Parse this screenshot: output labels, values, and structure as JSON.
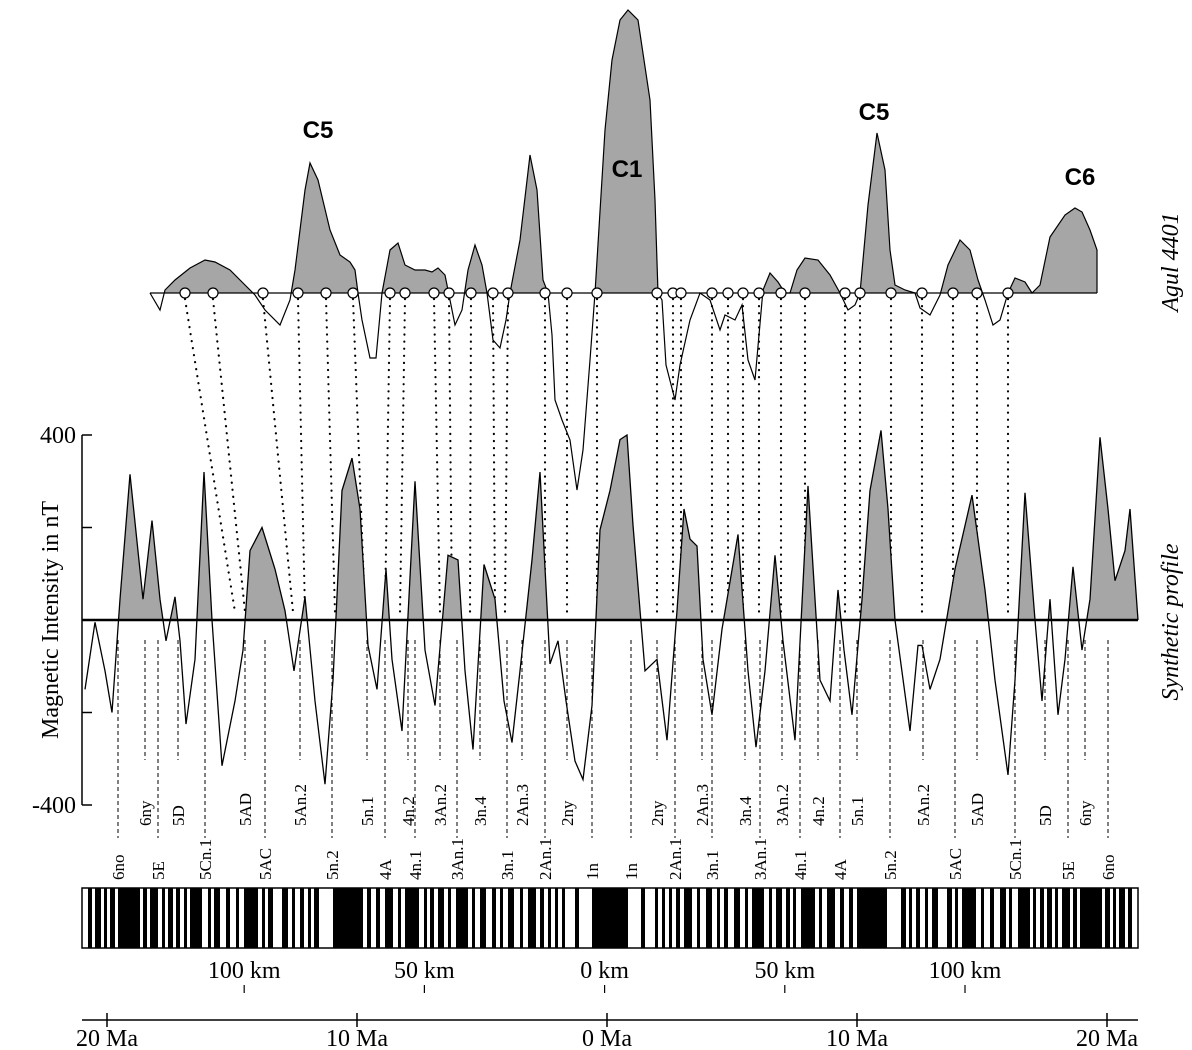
{
  "chart_data": {
    "type": "line",
    "observed_label": "Agul 4401",
    "anomaly_labels": [
      "C5",
      "C1",
      "C5",
      "C6"
    ],
    "ylabel": "Magnetic Intensity in nT",
    "color": "#a6a6a6",
    "x": [
      -20.88,
      -20.48,
      -20.08,
      -19.8,
      -19.48,
      -19.08,
      -18.56,
      -18.2,
      -17.88,
      -17.64,
      -17.28,
      -17.08,
      -16.84,
      -16.48,
      -16.12,
      -15.8,
      -15.4,
      -14.88,
      -14.56,
      -14.28,
      -13.8,
      -13.28,
      -12.88,
      -12.52,
      -12.08,
      -11.68,
      -11.28,
      -10.96,
      -10.6,
      -10.2,
      -9.88,
      -9.56,
      -9.2,
      -8.84,
      -8.6,
      -8.2,
      -7.68,
      -7.28,
      -6.88,
      -6.36,
      -5.96,
      -5.68,
      -5.36,
      -4.92,
      -4.48,
      -4.12,
      -3.8,
      -3.48,
      -3.0,
      -2.68,
      -2.28,
      -1.96,
      -1.64,
      -1.28,
      -0.96,
      -0.6,
      -0.28,
      0.12,
      0.52,
      0.8,
      1.04,
      1.52,
      2.0,
      2.4,
      2.8,
      3.08,
      3.32,
      3.6,
      3.84,
      4.2,
      4.6,
      5.24,
      5.64,
      5.96,
      6.32,
      6.72,
      7.04,
      7.52,
      8.04,
      8.52,
      8.92,
      9.24,
      9.48,
      9.8,
      10.2,
      10.52,
      10.96,
      11.24,
      11.52,
      12.12,
      12.44,
      12.6,
      12.92,
      13.32,
      13.92,
      14.6,
      15.12,
      15.52,
      16.04,
      16.32,
      16.72,
      17.12,
      17.4,
      17.72,
      18.04,
      18.32,
      18.64,
      19.0,
      19.32,
      19.72,
      20.04,
      20.32,
      20.72,
      20.92,
      21.24
    ],
    "series": [
      {
        "name": "Synthetic profile",
        "color": "#000000",
        "values": [
          -150,
          -5,
          -110,
          -200,
          45,
          315,
          45,
          215,
          45,
          -45,
          50,
          -45,
          -225,
          -85,
          320,
          0,
          -315,
          -175,
          -65,
          150,
          200,
          110,
          20,
          -110,
          50,
          -175,
          -355,
          -130,
          280,
          350,
          240,
          -55,
          -150,
          110,
          -85,
          -240,
          300,
          -65,
          -185,
          140,
          130,
          -110,
          -280,
          120,
          45,
          -175,
          -265,
          -110,
          130,
          320,
          -95,
          -45,
          -175,
          -305,
          -345,
          -185,
          195,
          280,
          390,
          400,
          205,
          -110,
          -85,
          -260,
          20,
          240,
          175,
          160,
          -85,
          -205,
          -20,
          185,
          -110,
          -275,
          -110,
          140,
          -45,
          -260,
          290,
          -130,
          -175,
          65,
          -65,
          -205,
          45,
          280,
          410,
          240,
          0,
          -240,
          -55,
          -55,
          -150,
          -85,
          110,
          270,
          65,
          -130,
          -335,
          -130,
          275,
          0,
          -175,
          45,
          -205,
          -85,
          115,
          -65,
          45,
          395,
          240,
          85,
          150,
          240,
          0
        ]
      }
    ],
    "xlim": [
      -21,
      21.24
    ],
    "xticks": [
      {
        "value": -20,
        "label": "20 Ma"
      },
      {
        "value": -10,
        "label": "10 Ma"
      },
      {
        "value": 0,
        "label": "0 Ma"
      },
      {
        "value": 10,
        "label": "10 Ma"
      },
      {
        "value": 20,
        "label": "20 Ma"
      }
    ],
    "x2lim": [
      -145,
      148
    ],
    "x2ticks": [
      {
        "value": -100,
        "label": "100 km"
      },
      {
        "value": -50,
        "label": "50 km"
      },
      {
        "value": 0,
        "label": "0 km"
      },
      {
        "value": 50,
        "label": "50 km"
      },
      {
        "value": 100,
        "label": "100 km"
      }
    ],
    "ylim": [
      -400,
      400
    ],
    "yticks": [
      400,
      -400
    ],
    "yminorticks": [
      -200,
      0,
      200
    ],
    "chrons_upper": [
      "6ny",
      "5D",
      "5AD",
      "5An.2",
      "5n.1",
      "4n.2",
      "3An.2",
      "3n.4",
      "2An.3",
      "2ny",
      "2ny",
      "2An.3",
      "3n.4",
      "3An.2",
      "4n.2",
      "5n.1",
      "5An.2",
      "5AD",
      "5D",
      "6ny"
    ],
    "chrons_lower": [
      "6no",
      "5E",
      "5Cn.1",
      "5AC",
      "5n.2",
      "4A",
      "4n.1",
      "3An.1",
      "3n.1",
      "2An.1",
      "1n",
      "1n",
      "2An.1",
      "3n.1",
      "3An.1",
      "4n.1",
      "4A",
      "5n.2",
      "5AC",
      "5Cn.1",
      "5E",
      "6no"
    ]
  }
}
